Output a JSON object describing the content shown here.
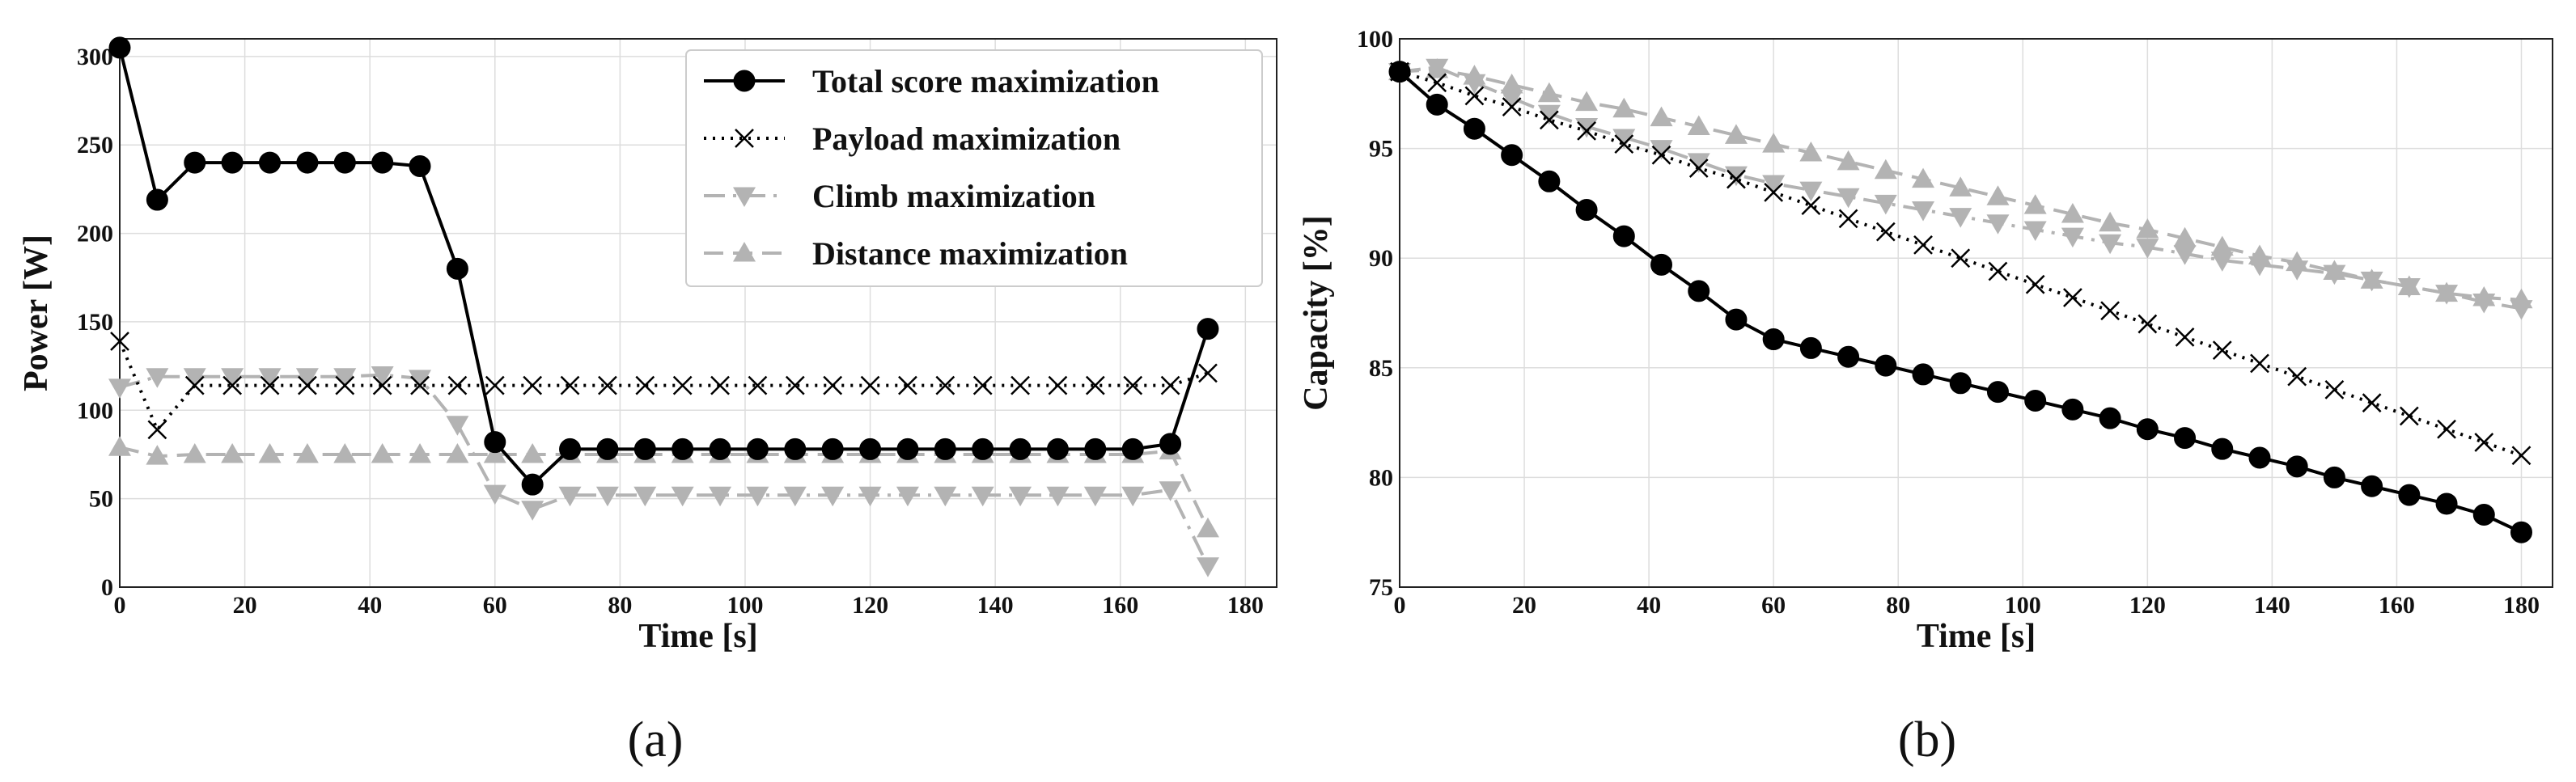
{
  "colors": {
    "black": "#000000",
    "gray": "#b3b3b3"
  },
  "chart_data": [
    {
      "id": "a",
      "type": "line",
      "caption": "(a)",
      "xlabel": "Time [s]",
      "ylabel": "Power [W]",
      "xlim": [
        0,
        185
      ],
      "ylim": [
        0,
        310
      ],
      "xticks": [
        "0",
        "20",
        "40",
        "60",
        "80",
        "100",
        "120",
        "140",
        "160",
        "180"
      ],
      "yticks": [
        "0",
        "50",
        "100",
        "150",
        "200",
        "250",
        "300"
      ],
      "legend_position": "top-right",
      "series": [
        {
          "name": "Total score maximization",
          "style": "solid-circle",
          "color": "#000000",
          "x": [
            0,
            6,
            12,
            18,
            24,
            30,
            36,
            42,
            48,
            54,
            60,
            66,
            72,
            78,
            84,
            90,
            96,
            102,
            108,
            114,
            120,
            126,
            132,
            138,
            144,
            150,
            156,
            162,
            168,
            174
          ],
          "y": [
            305,
            219,
            240,
            240,
            240,
            240,
            240,
            240,
            238,
            180,
            82,
            58,
            78,
            78,
            78,
            78,
            78,
            78,
            78,
            78,
            78,
            78,
            78,
            78,
            78,
            78,
            78,
            78,
            81,
            146
          ]
        },
        {
          "name": "Payload maximization",
          "style": "dotted-x",
          "color": "#000000",
          "x": [
            0,
            6,
            12,
            18,
            24,
            30,
            36,
            42,
            48,
            54,
            60,
            66,
            72,
            78,
            84,
            90,
            96,
            102,
            108,
            114,
            120,
            126,
            132,
            138,
            144,
            150,
            156,
            162,
            168,
            174
          ],
          "y": [
            139,
            89,
            114,
            114,
            114,
            114,
            114,
            114,
            114,
            114,
            114,
            114,
            114,
            114,
            114,
            114,
            114,
            114,
            114,
            114,
            114,
            114,
            114,
            114,
            114,
            114,
            114,
            114,
            114,
            121
          ]
        },
        {
          "name": "Climb maximization",
          "style": "dashdot-trianglesdown",
          "color": "#b3b3b3",
          "x": [
            0,
            6,
            12,
            18,
            24,
            30,
            36,
            42,
            48,
            54,
            60,
            66,
            72,
            78,
            84,
            90,
            96,
            102,
            108,
            114,
            120,
            126,
            132,
            138,
            144,
            150,
            156,
            162,
            168,
            174
          ],
          "y": [
            113,
            119,
            119,
            119,
            119,
            119,
            119,
            120,
            118,
            92,
            53,
            44,
            52,
            52,
            52,
            52,
            52,
            52,
            52,
            52,
            52,
            52,
            52,
            52,
            52,
            52,
            52,
            52,
            55,
            12
          ]
        },
        {
          "name": "Distance maximization",
          "style": "dashed-trianglesup",
          "color": "#b3b3b3",
          "x": [
            0,
            6,
            12,
            18,
            24,
            30,
            36,
            42,
            48,
            54,
            60,
            66,
            72,
            78,
            84,
            90,
            96,
            102,
            108,
            114,
            120,
            126,
            132,
            138,
            144,
            150,
            156,
            162,
            168,
            174
          ],
          "y": [
            79,
            74,
            75,
            75,
            75,
            75,
            75,
            75,
            75,
            75,
            75,
            75,
            75,
            75,
            75,
            75,
            75,
            75,
            75,
            75,
            75,
            75,
            75,
            75,
            75,
            75,
            75,
            75,
            77,
            33
          ]
        }
      ]
    },
    {
      "id": "b",
      "type": "line",
      "caption": "(b)",
      "xlabel": "Time [s]",
      "ylabel": "Capacity [%]",
      "xlim": [
        0,
        185
      ],
      "ylim": [
        75,
        100
      ],
      "xticks": [
        "0",
        "20",
        "40",
        "60",
        "80",
        "100",
        "120",
        "140",
        "160",
        "180"
      ],
      "yticks": [
        "75",
        "80",
        "85",
        "90",
        "95",
        "100"
      ],
      "series": [
        {
          "name": "Total score maximization",
          "style": "solid-circle",
          "color": "#000000",
          "x": [
            0,
            6,
            12,
            18,
            24,
            30,
            36,
            42,
            48,
            54,
            60,
            66,
            72,
            78,
            84,
            90,
            96,
            102,
            108,
            114,
            120,
            126,
            132,
            138,
            144,
            150,
            156,
            162,
            168,
            174,
            180
          ],
          "y": [
            98.5,
            97.0,
            95.9,
            94.7,
            93.5,
            92.2,
            91.0,
            89.7,
            88.5,
            87.2,
            86.3,
            85.9,
            85.5,
            85.1,
            84.7,
            84.3,
            83.9,
            83.5,
            83.1,
            82.7,
            82.2,
            81.8,
            81.3,
            80.9,
            80.5,
            80.0,
            79.6,
            79.2,
            78.8,
            78.3,
            77.5
          ]
        },
        {
          "name": "Payload maximization",
          "style": "dotted-x",
          "color": "#000000",
          "x": [
            0,
            6,
            12,
            18,
            24,
            30,
            36,
            42,
            48,
            54,
            60,
            66,
            72,
            78,
            84,
            90,
            96,
            102,
            108,
            114,
            120,
            126,
            132,
            138,
            144,
            150,
            156,
            162,
            168,
            174,
            180
          ],
          "y": [
            98.5,
            98.0,
            97.4,
            96.9,
            96.3,
            95.8,
            95.2,
            94.7,
            94.1,
            93.6,
            93.0,
            92.4,
            91.8,
            91.2,
            90.6,
            90.0,
            89.4,
            88.8,
            88.2,
            87.6,
            87.0,
            86.4,
            85.8,
            85.2,
            84.6,
            84.0,
            83.4,
            82.8,
            82.2,
            81.6,
            81.0
          ]
        },
        {
          "name": "Climb maximization",
          "style": "dashdot-trianglesdown",
          "color": "#b3b3b3",
          "x": [
            0,
            6,
            12,
            18,
            24,
            30,
            36,
            42,
            48,
            54,
            60,
            66,
            72,
            78,
            84,
            90,
            96,
            102,
            108,
            114,
            120,
            126,
            132,
            138,
            144,
            150,
            156,
            162,
            168,
            174,
            180
          ],
          "y": [
            98.5,
            98.7,
            98.0,
            97.3,
            96.6,
            96.0,
            95.5,
            95.0,
            94.4,
            93.8,
            93.4,
            93.1,
            92.8,
            92.5,
            92.2,
            91.9,
            91.6,
            91.3,
            91.0,
            90.7,
            90.5,
            90.2,
            89.9,
            89.7,
            89.5,
            89.3,
            89.0,
            88.7,
            88.4,
            88.0,
            87.7
          ]
        },
        {
          "name": "Distance maximization",
          "style": "dashed-trianglesup",
          "color": "#b3b3b3",
          "x": [
            0,
            6,
            12,
            18,
            24,
            30,
            36,
            42,
            48,
            54,
            60,
            66,
            72,
            78,
            84,
            90,
            96,
            102,
            108,
            114,
            120,
            126,
            132,
            138,
            144,
            150,
            156,
            162,
            168,
            174,
            180
          ],
          "y": [
            98.5,
            98.6,
            98.3,
            97.9,
            97.5,
            97.1,
            96.8,
            96.4,
            96.0,
            95.6,
            95.2,
            94.8,
            94.4,
            94.0,
            93.6,
            93.2,
            92.8,
            92.4,
            92.0,
            91.6,
            91.3,
            90.9,
            90.5,
            90.1,
            89.8,
            89.4,
            89.0,
            88.7,
            88.4,
            88.2,
            88.1
          ]
        }
      ]
    }
  ]
}
